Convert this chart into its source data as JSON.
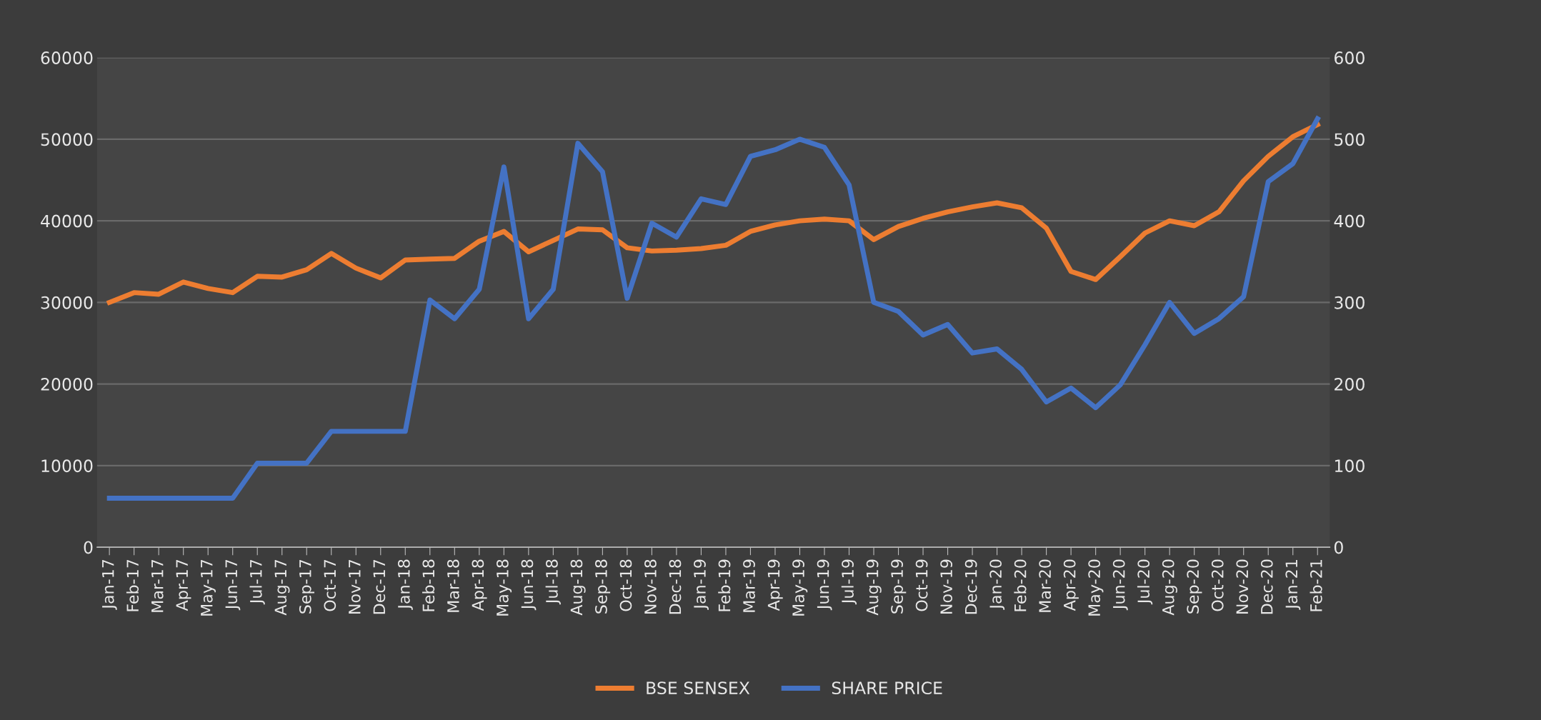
{
  "chart_data": {
    "type": "line",
    "categories": [
      "Jan-17",
      "Feb-17",
      "Mar-17",
      "Apr-17",
      "May-17",
      "Jun-17",
      "Jul-17",
      "Aug-17",
      "Sep-17",
      "Oct-17",
      "Nov-17",
      "Dec-17",
      "Jan-18",
      "Feb-18",
      "Mar-18",
      "Apr-18",
      "May-18",
      "Jun-18",
      "Jul-18",
      "Aug-18",
      "Sep-18",
      "Oct-18",
      "Nov-18",
      "Dec-18",
      "Jan-19",
      "Feb-19",
      "Mar-19",
      "Apr-19",
      "May-19",
      "Jun-19",
      "Jul-19",
      "Aug-19",
      "Sep-19",
      "Oct-19",
      "Nov-19",
      "Dec-19",
      "Jan-20",
      "Feb-20",
      "Mar-20",
      "Apr-20",
      "May-20",
      "Jun-20",
      "Jul-20",
      "Aug-20",
      "Sep-20",
      "Oct-20",
      "Nov-20",
      "Dec-20",
      "Jan-21",
      "Feb-21"
    ],
    "series": [
      {
        "name": "BSE SENSEX",
        "color": "#ed7d31",
        "values": [
          30000,
          31200,
          31000,
          32500,
          31700,
          31200,
          33200,
          33100,
          34000,
          36000,
          34200,
          33000,
          35200,
          35300,
          35400,
          37500,
          38700,
          36200,
          37600,
          39000,
          38900,
          36700,
          36300,
          36400,
          36600,
          37000,
          38700,
          39500,
          40000,
          40200,
          40000,
          37700,
          39300,
          40300,
          41100,
          41700,
          42200,
          41600,
          39100,
          33800,
          32800,
          35600,
          38500,
          40000,
          39400,
          41100,
          44900,
          47900,
          50300,
          51800
        ]
      },
      {
        "name": "SHARE PRICE",
        "color": "#4472c4",
        "axis": "y2",
        "values": [
          60,
          60,
          60,
          60,
          60,
          60,
          103,
          103,
          103,
          142,
          142,
          142,
          142,
          303,
          280,
          316,
          466,
          280,
          316,
          495,
          460,
          305,
          397,
          380,
          427,
          420,
          479,
          487,
          500,
          490,
          444,
          300,
          289,
          260,
          273,
          238,
          243,
          218,
          178,
          195,
          171,
          199,
          248,
          300,
          262,
          280,
          307,
          448,
          470,
          525
        ]
      }
    ],
    "ylim": [
      0,
      60000
    ],
    "yticks": [
      0,
      10000,
      20000,
      30000,
      40000,
      50000,
      60000
    ],
    "y2lim": [
      0,
      600
    ],
    "y2ticks": [
      0,
      100,
      200,
      300,
      400,
      500,
      600
    ],
    "grid": "y",
    "legend": "bottom"
  }
}
